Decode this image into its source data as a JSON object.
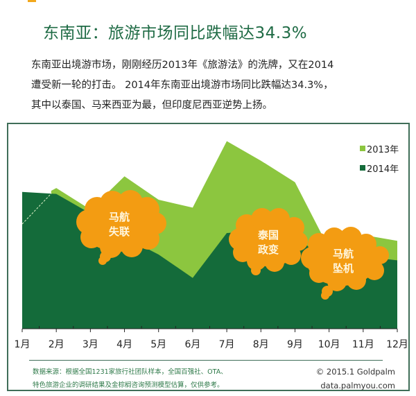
{
  "header": {
    "title": "东南亚：旅游市场同比跌幅达34.3%"
  },
  "description": {
    "lines": [
      "东南亚出境游市场，刚刚经历2013年《旅游法》的洗牌，又在2014",
      "遭受新一轮的打击。 2014年东南亚出境游市场同比跌幅达34.3%，",
      "其中以泰国、马来西亚为最，但印度尼西亚逆势上扬。"
    ]
  },
  "colors": {
    "series_2013": "#8cc63f",
    "series_2014": "#146b3a",
    "annotation": "#f39c12",
    "frame": "#3f6e58",
    "title": "#1f6b45"
  },
  "chart_data": {
    "type": "area",
    "title": "东南亚：旅游市场同比跌幅达34.3%",
    "xlabel": "",
    "ylabel": "",
    "categories": [
      "1月",
      "2月",
      "3月",
      "4月",
      "5月",
      "6月",
      "7月",
      "8月",
      "9月",
      "10月",
      "11月",
      "12月"
    ],
    "series": [
      {
        "name": "2013年",
        "values": [
          55,
          72,
          61,
          78,
          66,
          62,
          96,
          86,
          75,
          41,
          48,
          45
        ]
      },
      {
        "name": "2014年",
        "values": [
          70,
          69,
          59,
          47,
          38,
          26,
          49,
          50,
          45,
          38,
          37,
          35
        ]
      }
    ],
    "ylim": [
      0,
      115
    ],
    "grid": false,
    "legend_position": "top-right",
    "annotations": [
      {
        "text": "马航\n失联",
        "month": "3月-4月"
      },
      {
        "text": "泰国\n政变",
        "month": "8月"
      },
      {
        "text": "马航\n坠机",
        "month": "10月"
      }
    ],
    "notes": "Values are relative (no y-axis shown); estimated from area heights."
  },
  "legend": {
    "items": [
      {
        "label": "2013年"
      },
      {
        "label": "2014年"
      }
    ]
  },
  "annotations": {
    "mh_missing": [
      "马航",
      "失联"
    ],
    "thai_coup": [
      "泰国",
      "政变"
    ],
    "mh_crash": [
      "马航",
      "坠机"
    ]
  },
  "footer": {
    "source_lines": [
      "数据来源：根据全国1231家旅行社团队样本，全国百强社、OTA、",
      "特色旅游企业的调研结果及金棕榈咨询预测模型估算，仅供参考。"
    ],
    "copyright": "© 2015.1 Goldpalm",
    "website": "data.palmyou.com"
  }
}
